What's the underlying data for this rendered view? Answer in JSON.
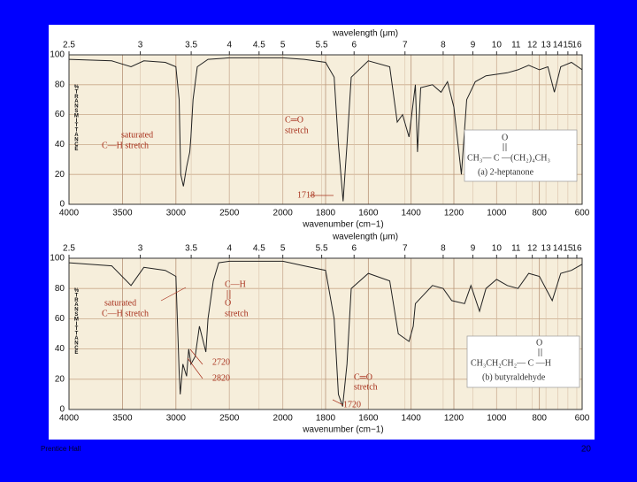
{
  "chart_data": [
    {
      "type": "line",
      "series_name": "(a) 2-heptanone",
      "x": [
        4000,
        3600,
        3420,
        3300,
        3100,
        3000,
        2970,
        2955,
        2930,
        2900,
        2870,
        2860,
        2840,
        2800,
        2700,
        2500,
        2200,
        2000,
        1900,
        1800,
        1760,
        1740,
        1718,
        1700,
        1680,
        1600,
        1500,
        1465,
        1440,
        1410,
        1380,
        1370,
        1355,
        1300,
        1260,
        1230,
        1200,
        1165,
        1140,
        1100,
        1050,
        1000,
        950,
        900,
        850,
        800,
        760,
        730,
        700,
        650,
        600
      ],
      "values": [
        97,
        96,
        92,
        96,
        95,
        92,
        70,
        20,
        12,
        25,
        35,
        45,
        70,
        92,
        97,
        98,
        98,
        98,
        97,
        95,
        85,
        40,
        2,
        40,
        85,
        96,
        92,
        55,
        60,
        45,
        80,
        35,
        78,
        80,
        75,
        82,
        65,
        20,
        70,
        82,
        86,
        87,
        88,
        90,
        93,
        90,
        92,
        75,
        92,
        95,
        90
      ],
      "color": "#222222",
      "xlim": [
        4000,
        600
      ],
      "x_break": 2000,
      "xticks": [
        4000,
        3500,
        3000,
        2500,
        2000,
        1800,
        1600,
        1400,
        1200,
        1000,
        800,
        600
      ],
      "x2ticks": [
        2.5,
        3,
        3.5,
        4,
        4.5,
        5,
        5.5,
        6,
        7,
        8,
        9,
        10,
        11,
        12,
        13,
        14,
        15,
        16
      ],
      "ylim": [
        0,
        100
      ],
      "yticks": [
        0,
        20,
        40,
        60,
        80,
        100
      ],
      "grid": true,
      "xlabel": "wavenumber (cm−1)",
      "x2label": "wavelength (μm)",
      "ylabel": "%TRANSMITTANCE",
      "annotations": [
        "saturated",
        "C—H stretch",
        "C═O",
        "stretch",
        "1718"
      ],
      "structure": [
        "O",
        "CH₃— C —(CH₂)₄CH₃",
        "(a) 2-heptanone"
      ]
    },
    {
      "type": "line",
      "series_name": "(b) butyraldehyde",
      "x": [
        4000,
        3600,
        3420,
        3300,
        3100,
        3000,
        2970,
        2960,
        2935,
        2900,
        2880,
        2860,
        2820,
        2780,
        2720,
        2700,
        2650,
        2600,
        2500,
        2000,
        1900,
        1800,
        1760,
        1740,
        1720,
        1700,
        1680,
        1600,
        1500,
        1460,
        1440,
        1410,
        1390,
        1380,
        1300,
        1250,
        1210,
        1150,
        1120,
        1080,
        1050,
        1000,
        950,
        900,
        850,
        800,
        740,
        700,
        650,
        600
      ],
      "values": [
        97,
        95,
        82,
        94,
        92,
        88,
        25,
        10,
        30,
        22,
        40,
        30,
        35,
        55,
        38,
        60,
        85,
        97,
        98,
        98,
        95,
        92,
        60,
        10,
        2,
        30,
        80,
        90,
        85,
        50,
        48,
        45,
        55,
        70,
        82,
        80,
        72,
        70,
        82,
        65,
        80,
        86,
        82,
        80,
        90,
        88,
        72,
        90,
        92,
        96
      ],
      "color": "#222222",
      "xlim": [
        4000,
        600
      ],
      "x_break": 2000,
      "xticks": [
        4000,
        3500,
        3000,
        2500,
        2000,
        1800,
        1600,
        1400,
        1200,
        1000,
        800,
        600
      ],
      "x2ticks": [
        2.5,
        3,
        3.5,
        4,
        4.5,
        5,
        5.5,
        6,
        7,
        8,
        9,
        10,
        11,
        12,
        13,
        14,
        15,
        16
      ],
      "ylim": [
        0,
        100
      ],
      "yticks": [
        0,
        20,
        40,
        60,
        80,
        100
      ],
      "grid": true,
      "xlabel": "wavenumber (cm−1)",
      "x2label": "wavelength (μm)",
      "ylabel": "%TRANSMITTANCE",
      "annotations": [
        "saturated",
        "C—H stretch",
        "C—H",
        "O",
        "stretch",
        "2720",
        "2820",
        "C═O",
        "stretch",
        "1720"
      ],
      "structure": [
        "O",
        "CH₃CH₂CH₂— C —H",
        "(b) butyraldehyde"
      ]
    }
  ],
  "footer": {
    "left": "Prentice Hall",
    "page": "20"
  }
}
